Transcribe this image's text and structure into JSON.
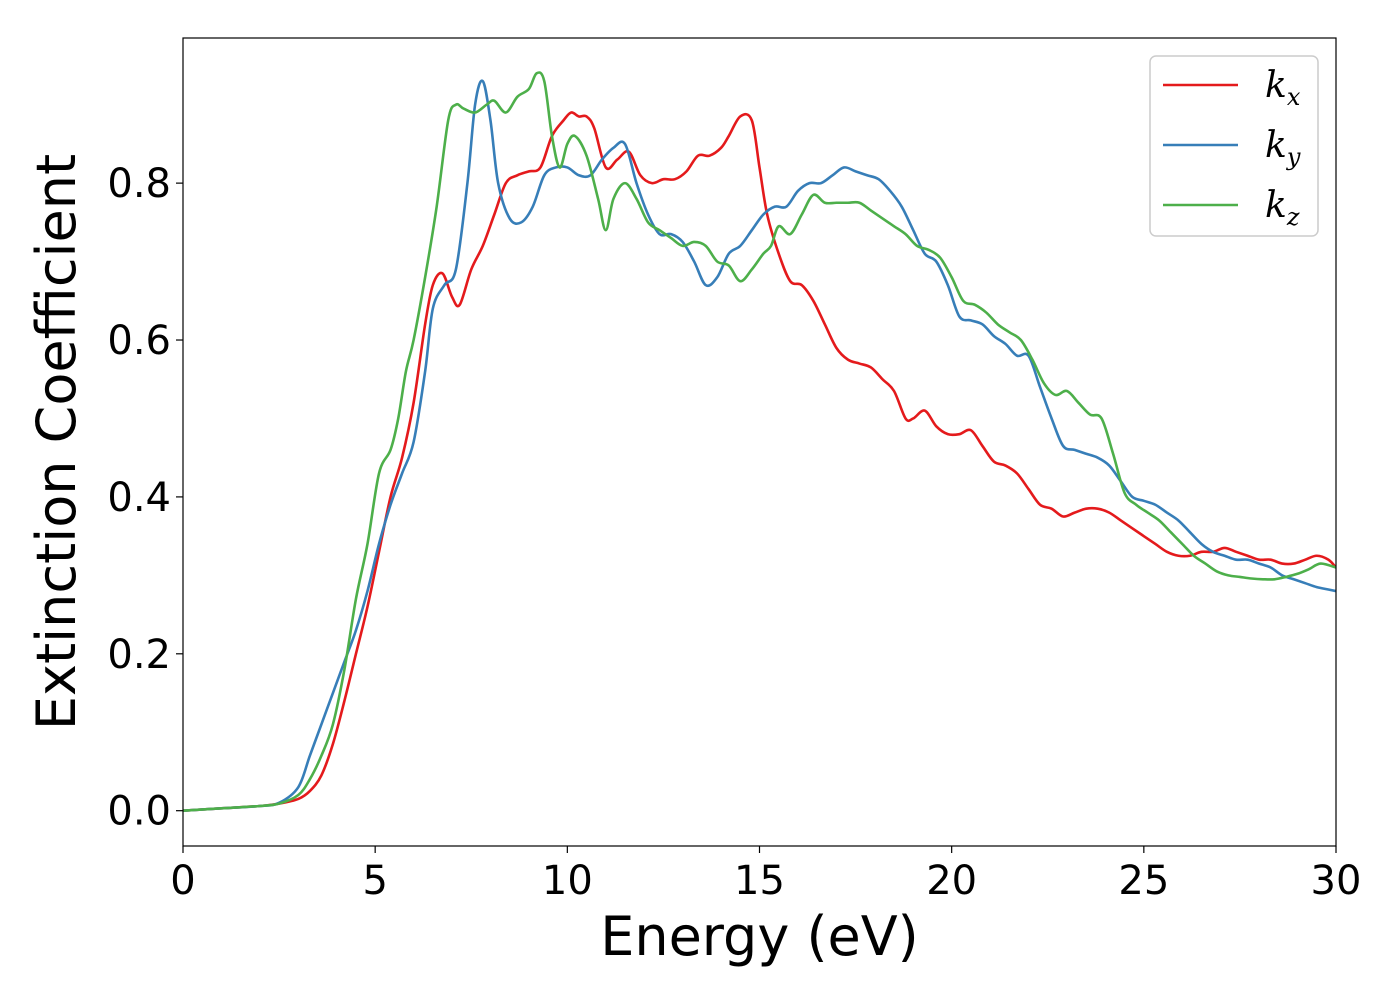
{
  "chart_data": {
    "type": "line",
    "title": "",
    "xlabel": "Energy (eV)",
    "ylabel": "Extinction Coefficient",
    "xlim": [
      0,
      30
    ],
    "ylim": [
      -0.045,
      0.985
    ],
    "xticks": [
      0,
      5,
      10,
      15,
      20,
      25,
      30
    ],
    "xtick_labels": [
      "0",
      "5",
      "10",
      "15",
      "20",
      "25",
      "30"
    ],
    "yticks": [
      0.0,
      0.2,
      0.4,
      0.6,
      0.8
    ],
    "ytick_labels": [
      "0.0",
      "0.2",
      "0.4",
      "0.6",
      "0.8"
    ],
    "grid": false,
    "legend_position": "top-right",
    "series": [
      {
        "name": "k_x",
        "label_main": "k",
        "label_sub": "x",
        "color": "#e41a1c",
        "x": [
          0,
          1,
          2,
          2.5,
          3,
          3.3,
          3.6,
          3.9,
          4.2,
          4.5,
          4.8,
          5.1,
          5.4,
          5.7,
          6.0,
          6.3,
          6.5,
          6.75,
          7.0,
          7.2,
          7.5,
          7.8,
          8.1,
          8.4,
          8.7,
          9.0,
          9.3,
          9.6,
          9.9,
          10.1,
          10.3,
          10.5,
          10.7,
          11.0,
          11.3,
          11.6,
          11.9,
          12.2,
          12.5,
          12.8,
          13.1,
          13.4,
          13.7,
          14.0,
          14.2,
          14.5,
          14.8,
          15.0,
          15.2,
          15.5,
          15.8,
          16.1,
          16.4,
          16.7,
          17.0,
          17.3,
          17.6,
          17.9,
          18.2,
          18.5,
          18.8,
          19.0,
          19.3,
          19.6,
          19.9,
          20.2,
          20.5,
          20.8,
          21.1,
          21.4,
          21.7,
          22.0,
          22.3,
          22.6,
          22.9,
          23.2,
          23.5,
          23.8,
          24.1,
          24.4,
          24.7,
          25.0,
          25.3,
          25.6,
          25.9,
          26.2,
          26.5,
          26.8,
          27.1,
          27.4,
          27.7,
          28.0,
          28.3,
          28.6,
          28.9,
          29.2,
          29.5,
          29.8,
          30
        ],
        "y": [
          0.0,
          0.003,
          0.006,
          0.009,
          0.015,
          0.025,
          0.045,
          0.085,
          0.14,
          0.2,
          0.26,
          0.33,
          0.4,
          0.45,
          0.52,
          0.62,
          0.67,
          0.685,
          0.655,
          0.645,
          0.69,
          0.72,
          0.76,
          0.8,
          0.81,
          0.815,
          0.82,
          0.86,
          0.88,
          0.89,
          0.885,
          0.885,
          0.87,
          0.82,
          0.83,
          0.84,
          0.81,
          0.8,
          0.805,
          0.805,
          0.815,
          0.835,
          0.835,
          0.845,
          0.86,
          0.885,
          0.88,
          0.82,
          0.76,
          0.71,
          0.675,
          0.67,
          0.65,
          0.62,
          0.59,
          0.575,
          0.57,
          0.565,
          0.55,
          0.535,
          0.5,
          0.5,
          0.51,
          0.49,
          0.48,
          0.48,
          0.485,
          0.465,
          0.445,
          0.44,
          0.43,
          0.41,
          0.39,
          0.385,
          0.375,
          0.38,
          0.385,
          0.385,
          0.38,
          0.37,
          0.36,
          0.35,
          0.34,
          0.33,
          0.325,
          0.325,
          0.33,
          0.33,
          0.335,
          0.33,
          0.325,
          0.32,
          0.32,
          0.315,
          0.315,
          0.32,
          0.325,
          0.32,
          0.31
        ]
      },
      {
        "name": "k_y",
        "label_main": "k",
        "label_sub": "y",
        "color": "#377eb8",
        "x": [
          0,
          1,
          2,
          2.5,
          3,
          3.3,
          3.6,
          3.9,
          4.2,
          4.5,
          4.8,
          5.1,
          5.4,
          5.7,
          6.0,
          6.3,
          6.5,
          6.8,
          7.1,
          7.4,
          7.6,
          7.8,
          8.0,
          8.2,
          8.5,
          8.8,
          9.1,
          9.4,
          9.7,
          10.0,
          10.3,
          10.6,
          10.9,
          11.2,
          11.5,
          11.8,
          12.1,
          12.4,
          12.7,
          13.0,
          13.3,
          13.6,
          13.9,
          14.2,
          14.5,
          14.8,
          15.1,
          15.4,
          15.7,
          16.0,
          16.3,
          16.6,
          16.9,
          17.2,
          17.5,
          17.8,
          18.1,
          18.4,
          18.7,
          19.0,
          19.3,
          19.6,
          19.9,
          20.2,
          20.5,
          20.8,
          21.1,
          21.4,
          21.7,
          22.0,
          22.3,
          22.6,
          22.9,
          23.2,
          23.5,
          23.8,
          24.1,
          24.4,
          24.7,
          25.0,
          25.3,
          25.6,
          25.9,
          26.2,
          26.5,
          26.8,
          27.1,
          27.4,
          27.7,
          28.0,
          28.3,
          28.6,
          28.9,
          29.2,
          29.5,
          29.8,
          30
        ],
        "y": [
          0.0,
          0.003,
          0.006,
          0.01,
          0.03,
          0.07,
          0.11,
          0.15,
          0.19,
          0.23,
          0.28,
          0.34,
          0.39,
          0.43,
          0.47,
          0.56,
          0.64,
          0.67,
          0.69,
          0.8,
          0.9,
          0.93,
          0.88,
          0.8,
          0.755,
          0.75,
          0.77,
          0.81,
          0.82,
          0.82,
          0.81,
          0.81,
          0.83,
          0.845,
          0.85,
          0.8,
          0.76,
          0.735,
          0.735,
          0.725,
          0.7,
          0.67,
          0.68,
          0.71,
          0.72,
          0.74,
          0.76,
          0.77,
          0.77,
          0.79,
          0.8,
          0.8,
          0.81,
          0.82,
          0.815,
          0.81,
          0.805,
          0.79,
          0.77,
          0.74,
          0.71,
          0.7,
          0.67,
          0.63,
          0.625,
          0.62,
          0.605,
          0.595,
          0.58,
          0.58,
          0.54,
          0.5,
          0.465,
          0.46,
          0.455,
          0.45,
          0.44,
          0.42,
          0.4,
          0.395,
          0.39,
          0.38,
          0.37,
          0.355,
          0.34,
          0.33,
          0.325,
          0.32,
          0.32,
          0.315,
          0.31,
          0.3,
          0.295,
          0.29,
          0.285,
          0.282,
          0.28
        ]
      },
      {
        "name": "k_z",
        "label_main": "k",
        "label_sub": "z",
        "color": "#4daf4a",
        "x": [
          0,
          1,
          2,
          2.5,
          3,
          3.3,
          3.6,
          3.9,
          4.2,
          4.5,
          4.8,
          5.1,
          5.4,
          5.6,
          5.8,
          6.0,
          6.3,
          6.6,
          6.9,
          7.1,
          7.3,
          7.6,
          7.9,
          8.1,
          8.4,
          8.7,
          9.0,
          9.2,
          9.4,
          9.6,
          9.8,
          10.0,
          10.2,
          10.5,
          10.8,
          11.0,
          11.2,
          11.5,
          11.8,
          12.1,
          12.4,
          12.7,
          13.0,
          13.3,
          13.6,
          13.9,
          14.2,
          14.5,
          14.8,
          15.1,
          15.3,
          15.5,
          15.8,
          16.1,
          16.4,
          16.7,
          17.0,
          17.3,
          17.6,
          17.9,
          18.2,
          18.5,
          18.8,
          19.1,
          19.4,
          19.7,
          20.0,
          20.3,
          20.6,
          20.9,
          21.2,
          21.5,
          21.8,
          22.1,
          22.4,
          22.7,
          23.0,
          23.3,
          23.6,
          23.9,
          24.2,
          24.5,
          24.8,
          25.1,
          25.4,
          25.7,
          26.0,
          26.3,
          26.6,
          26.9,
          27.2,
          27.5,
          27.8,
          28.1,
          28.4,
          28.7,
          29.0,
          29.3,
          29.6,
          30
        ],
        "y": [
          0.0,
          0.003,
          0.006,
          0.009,
          0.02,
          0.04,
          0.07,
          0.11,
          0.18,
          0.27,
          0.34,
          0.43,
          0.46,
          0.5,
          0.56,
          0.6,
          0.68,
          0.77,
          0.88,
          0.9,
          0.895,
          0.89,
          0.9,
          0.905,
          0.89,
          0.91,
          0.92,
          0.94,
          0.93,
          0.86,
          0.82,
          0.85,
          0.86,
          0.835,
          0.78,
          0.74,
          0.78,
          0.8,
          0.78,
          0.75,
          0.74,
          0.73,
          0.72,
          0.725,
          0.72,
          0.7,
          0.695,
          0.675,
          0.69,
          0.71,
          0.72,
          0.745,
          0.735,
          0.76,
          0.785,
          0.775,
          0.775,
          0.775,
          0.775,
          0.765,
          0.755,
          0.745,
          0.735,
          0.72,
          0.715,
          0.705,
          0.68,
          0.65,
          0.645,
          0.635,
          0.62,
          0.61,
          0.6,
          0.575,
          0.545,
          0.53,
          0.535,
          0.52,
          0.505,
          0.5,
          0.455,
          0.405,
          0.39,
          0.38,
          0.37,
          0.355,
          0.34,
          0.325,
          0.315,
          0.305,
          0.3,
          0.298,
          0.296,
          0.295,
          0.295,
          0.298,
          0.302,
          0.308,
          0.315,
          0.31
        ]
      }
    ]
  }
}
